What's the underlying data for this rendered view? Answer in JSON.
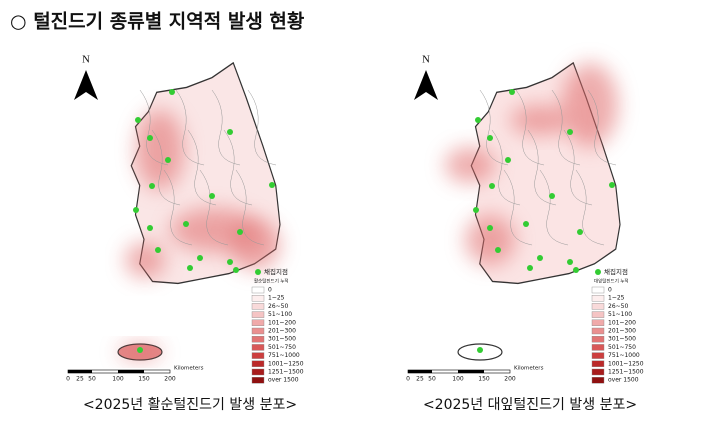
{
  "header": {
    "title": "○  털진드기 종류별 지역적 발생 현황"
  },
  "panels": [
    {
      "north": "N",
      "legend_title": "채집지점",
      "legend_subtitle": "활순털진드기 누적",
      "legend_items": [
        "0",
        "1~25",
        "26~50",
        "51~100",
        "101~200",
        "201~300",
        "301~500",
        "501~750",
        "751~1000",
        "1001~1250",
        "1251~1500",
        "over 1500"
      ],
      "scale_labels": [
        "0",
        "25",
        "50",
        "100",
        "150",
        "200"
      ],
      "scale_unit": "Kilometers",
      "caption": "<2025년 활순털진드기 발생 분포>"
    },
    {
      "north": "N",
      "legend_title": "채집지점",
      "legend_subtitle": "대잎털진드기 누적",
      "legend_items": [
        "0",
        "1~25",
        "26~50",
        "51~100",
        "101~200",
        "201~300",
        "301~500",
        "501~750",
        "751~1000",
        "1001~1250",
        "1251~1500",
        "over 1500"
      ],
      "scale_labels": [
        "0",
        "25",
        "50",
        "100",
        "150",
        "200"
      ],
      "scale_unit": "Kilometers",
      "caption": "<2025년 대잎털진드기 발생 분포>"
    }
  ]
}
